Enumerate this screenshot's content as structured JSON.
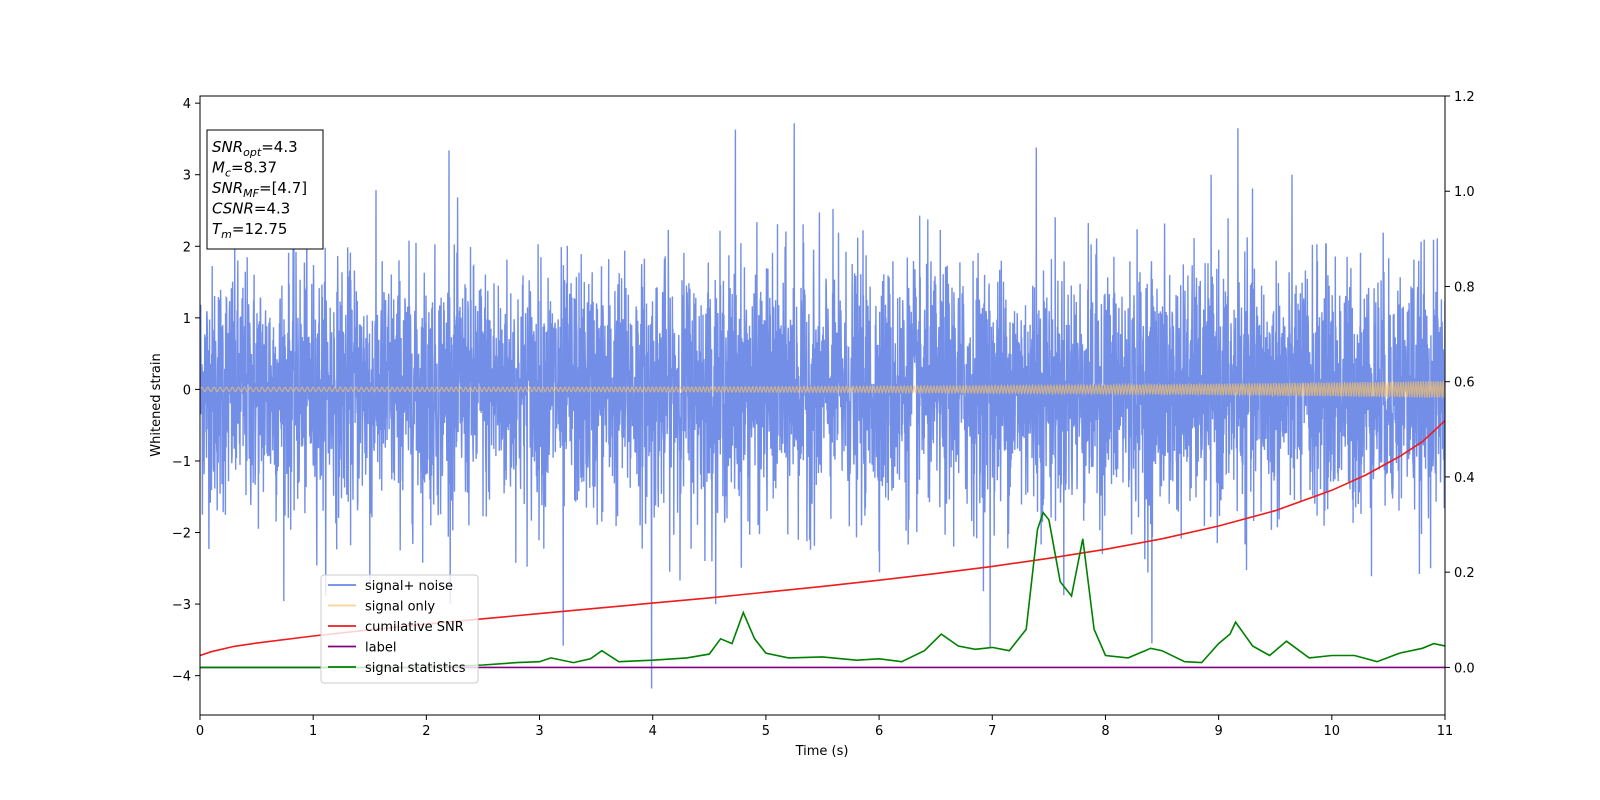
{
  "chart_data": {
    "type": "line",
    "xlabel": "Time (s)",
    "ylabel": "Whitened strain",
    "x_range": [
      0,
      11
    ],
    "y_left_range": [
      -4.55,
      4.1
    ],
    "y_right_range": [
      -0.1,
      1.2
    ],
    "x_ticks": [
      0,
      1,
      2,
      3,
      4,
      5,
      6,
      7,
      8,
      9,
      10,
      11
    ],
    "x_tick_labels": [
      "0",
      "1",
      "2",
      "3",
      "4",
      "5",
      "6",
      "7",
      "8",
      "9",
      "10",
      "11"
    ],
    "y_left_ticks": [
      -4,
      -3,
      -2,
      -1,
      0,
      1,
      2,
      3,
      4
    ],
    "y_left_tick_labels": [
      "−4",
      "−3",
      "−2",
      "−1",
      "0",
      "1",
      "2",
      "3",
      "4"
    ],
    "y_right_ticks": [
      0.0,
      0.2,
      0.4,
      0.6,
      0.8,
      1.0,
      1.2
    ],
    "y_right_tick_labels": [
      "0.0",
      "0.2",
      "0.4",
      "0.6",
      "0.8",
      "1.0",
      "1.2"
    ],
    "grid": false,
    "legend_position": "lower-left",
    "series": [
      {
        "name": "signal+ noise",
        "axis": "left",
        "color": "#6a88e6",
        "kind": "noise",
        "noise_std": 0.85,
        "y_extremes": [
          [
            5.25,
            3.72
          ],
          [
            4.73,
            3.63
          ],
          [
            9.17,
            3.65
          ],
          [
            7.39,
            3.38
          ],
          [
            2.2,
            3.34
          ],
          [
            3.99,
            -4.18
          ],
          [
            3.21,
            -3.58
          ],
          [
            8.41,
            -3.55
          ],
          [
            6.98,
            -3.6
          ],
          [
            1.5,
            -2.7
          ]
        ]
      },
      {
        "name": "signal only",
        "axis": "left",
        "color": "#f5c069",
        "kind": "chirp",
        "amplitude_start": 0.03,
        "amplitude_end": 0.12
      },
      {
        "name": "cumilative SNR",
        "axis": "right",
        "color": "#ee1c1c",
        "x": [
          0,
          0.1,
          0.3,
          0.5,
          1,
          1.5,
          2,
          2.5,
          3,
          3.5,
          4,
          4.5,
          5,
          5.5,
          6,
          6.5,
          7,
          7.5,
          8,
          8.5,
          9,
          9.5,
          10,
          10.3,
          10.6,
          10.8,
          11
        ],
        "y": [
          0.025,
          0.033,
          0.044,
          0.051,
          0.066,
          0.079,
          0.091,
          0.102,
          0.113,
          0.124,
          0.135,
          0.146,
          0.158,
          0.17,
          0.183,
          0.197,
          0.212,
          0.229,
          0.248,
          0.27,
          0.297,
          0.329,
          0.372,
          0.404,
          0.443,
          0.474,
          0.518
        ]
      },
      {
        "name": "label",
        "axis": "right",
        "color": "#800080",
        "x": [
          0,
          11
        ],
        "y": [
          0.0,
          0.0
        ]
      },
      {
        "name": "signal statistics",
        "axis": "right",
        "color": "#008000",
        "x": [
          0,
          1,
          2,
          2.5,
          2.8,
          3.0,
          3.1,
          3.3,
          3.45,
          3.55,
          3.7,
          4.0,
          4.3,
          4.5,
          4.6,
          4.7,
          4.8,
          4.9,
          5.0,
          5.2,
          5.5,
          5.8,
          6.0,
          6.2,
          6.4,
          6.55,
          6.7,
          6.85,
          7.0,
          7.15,
          7.3,
          7.4,
          7.45,
          7.5,
          7.6,
          7.7,
          7.8,
          7.9,
          8.0,
          8.2,
          8.4,
          8.5,
          8.7,
          8.85,
          9.0,
          9.1,
          9.15,
          9.3,
          9.45,
          9.6,
          9.8,
          10.0,
          10.2,
          10.4,
          10.6,
          10.8,
          10.9,
          11
        ],
        "y": [
          0.0,
          0.0,
          0.0,
          0.005,
          0.01,
          0.012,
          0.02,
          0.01,
          0.018,
          0.035,
          0.012,
          0.015,
          0.02,
          0.028,
          0.06,
          0.05,
          0.115,
          0.06,
          0.03,
          0.02,
          0.022,
          0.015,
          0.018,
          0.012,
          0.035,
          0.07,
          0.045,
          0.038,
          0.042,
          0.035,
          0.08,
          0.29,
          0.325,
          0.31,
          0.18,
          0.15,
          0.27,
          0.08,
          0.025,
          0.02,
          0.04,
          0.035,
          0.012,
          0.01,
          0.05,
          0.07,
          0.095,
          0.045,
          0.025,
          0.055,
          0.02,
          0.025,
          0.025,
          0.012,
          0.03,
          0.04,
          0.05,
          0.045
        ]
      }
    ],
    "annotation_box": {
      "lines": [
        {
          "sym": "SNR",
          "sub": "opt",
          "val": "=4.3"
        },
        {
          "sym": "M",
          "sub": "c",
          "val": "=8.37"
        },
        {
          "sym": "SNR",
          "sub": "MF",
          "val": "=[4.7]"
        },
        {
          "sym": "CSNR",
          "sub": "",
          "val": "=4.3"
        },
        {
          "sym": "T",
          "sub": "m",
          "val": "=12.75"
        }
      ]
    }
  }
}
